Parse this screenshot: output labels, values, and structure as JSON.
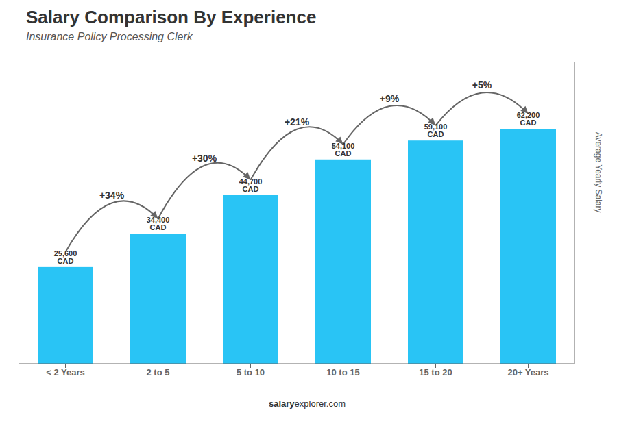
{
  "chart_data": {
    "type": "bar",
    "title": "Salary Comparison By Experience",
    "subtitle": "Insurance Policy Processing Clerk",
    "categories": [
      "< 2 Years",
      "2 to 5",
      "5 to 10",
      "10 to 15",
      "15 to 20",
      "20+ Years"
    ],
    "values": [
      25600,
      34400,
      44700,
      54100,
      59100,
      62200
    ],
    "value_labels": [
      "25,600 CAD",
      "34,400 CAD",
      "44,700 CAD",
      "54,100 CAD",
      "59,100 CAD",
      "62,200 CAD"
    ],
    "data_labels": true,
    "annotations": [
      "+34%",
      "+30%",
      "+21%",
      "+9%",
      "+5%"
    ],
    "ylabel": "Average Yearly Salary",
    "footer": [
      "salary",
      "explorer.com"
    ],
    "color": "#29c4f5",
    "ylim": [
      0,
      80000
    ],
    "tick_labels": "x"
  }
}
